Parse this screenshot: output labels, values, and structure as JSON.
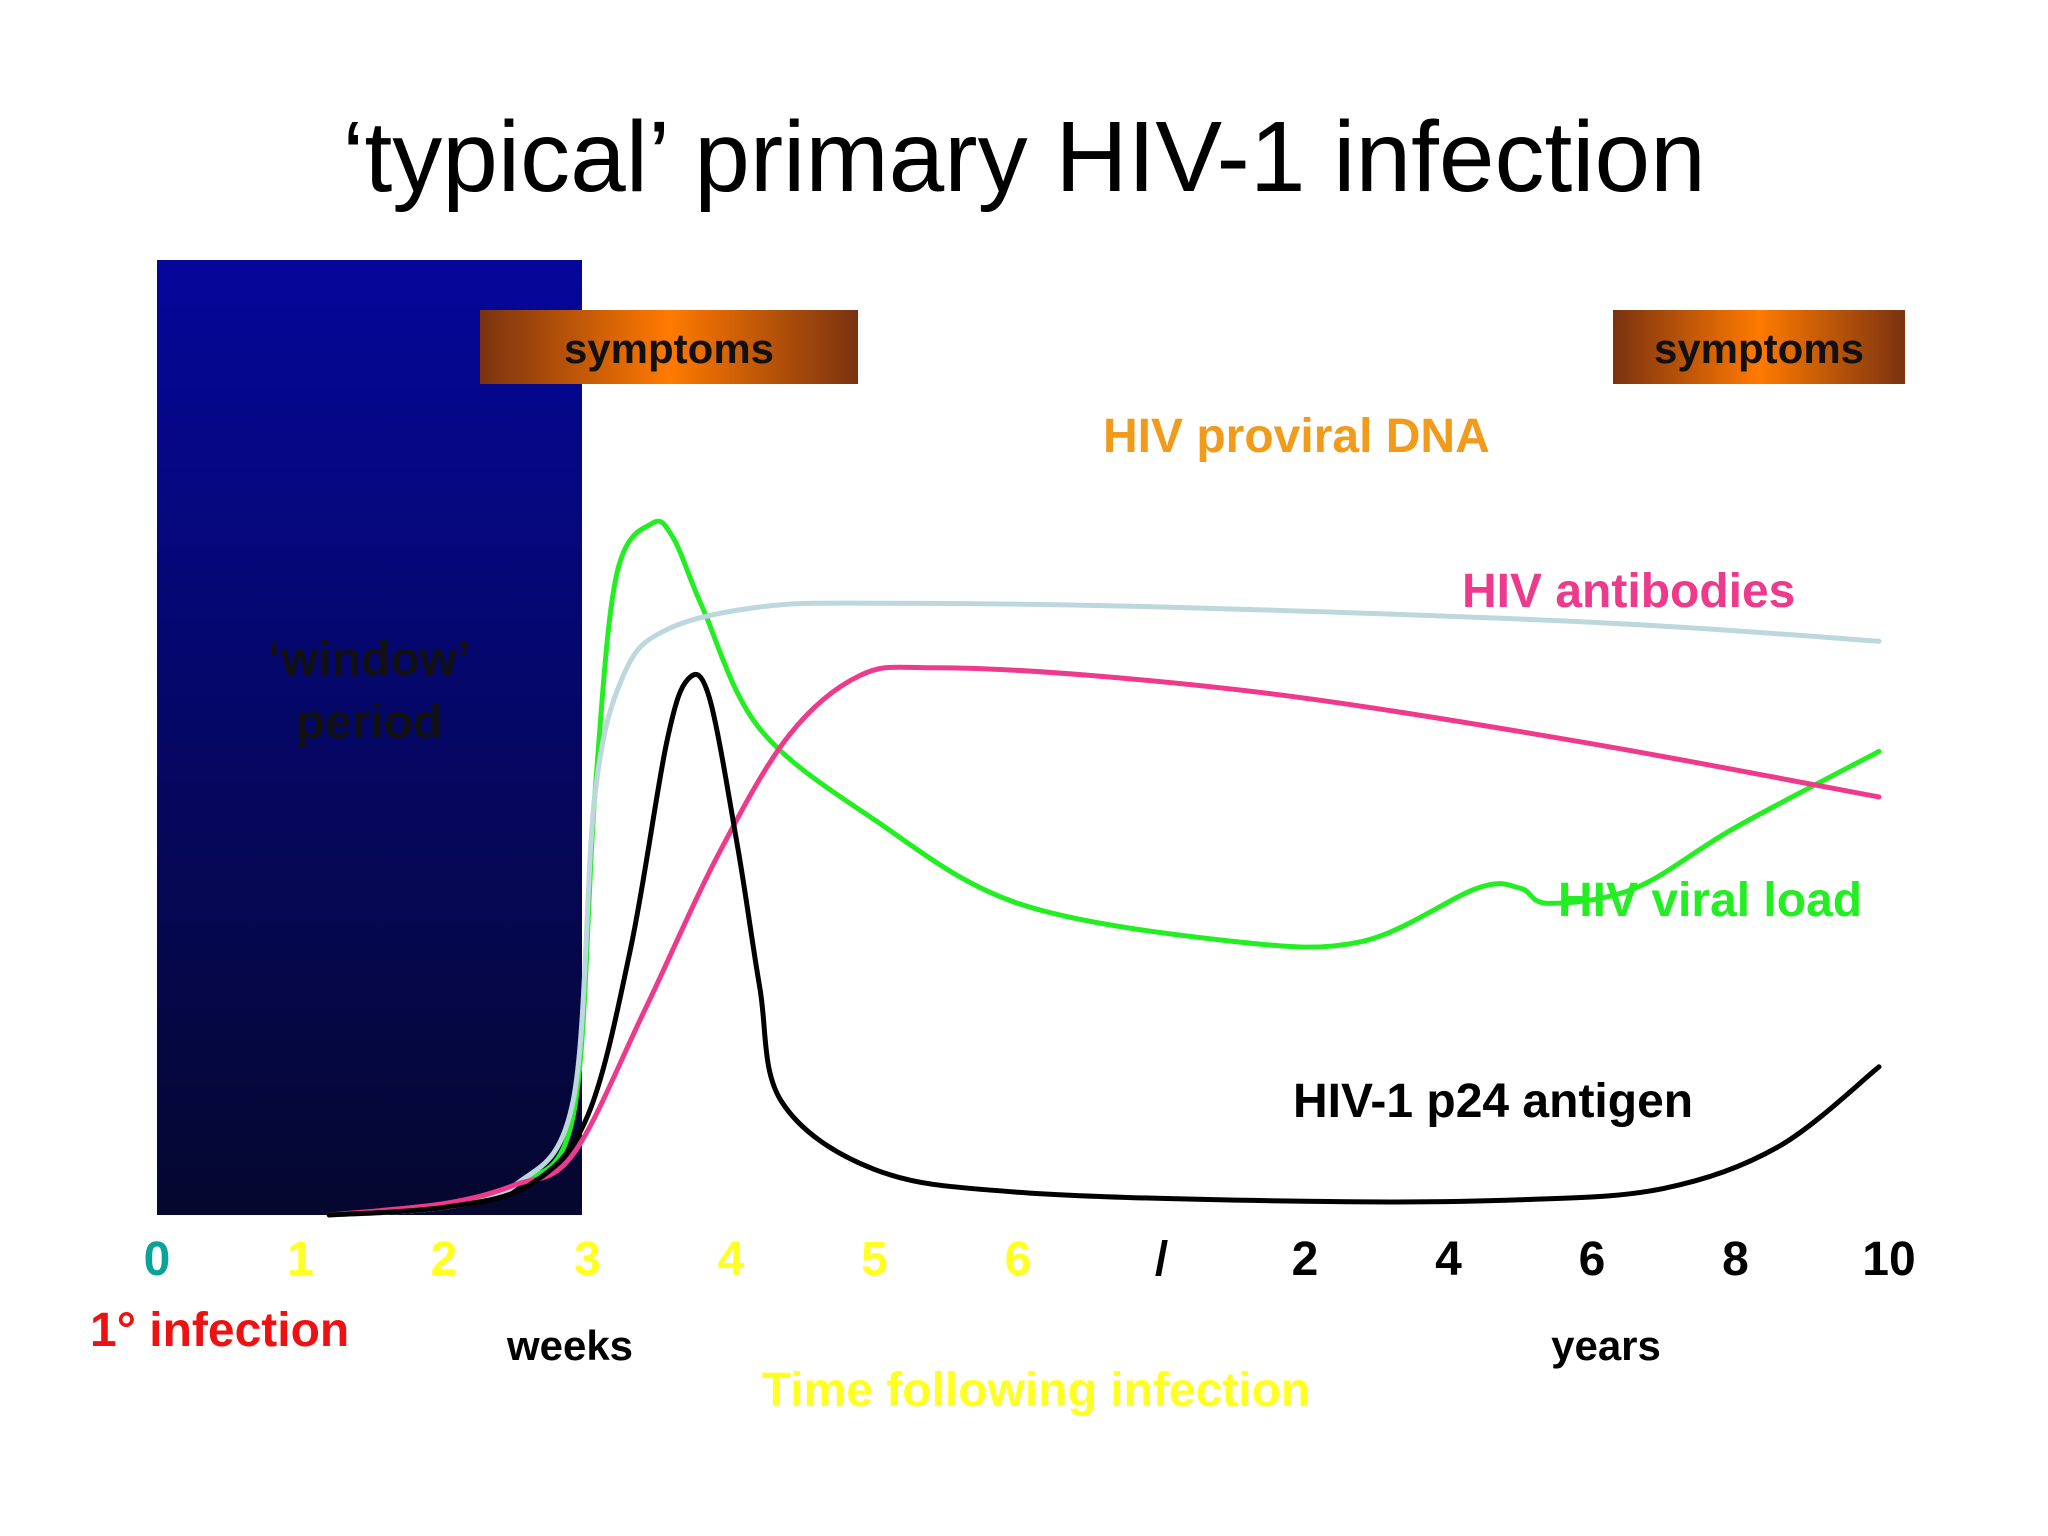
{
  "title": "‘typical’ primary HIV-1 infection",
  "colors": {
    "window_top": "#05079a",
    "window_bottom": "#05072e",
    "symptom_mid": "#ff7a00",
    "symptom_edge": "#7a3210",
    "viral_load": "#22ee22",
    "proviral_dna": "#bcd8dc",
    "antibodies": "#ee3a8c",
    "p24": "#000000",
    "orange_label": "#f29a1a",
    "yellow_label": "#ffff22",
    "teal_label": "#0aa39a",
    "red_label": "#ee1111"
  },
  "chart_data": {
    "type": "line",
    "window_label": [
      "‘window’",
      "period"
    ],
    "symptoms_labels": [
      "symptoms",
      "symptoms"
    ],
    "x_ticks": [
      {
        "label": "0",
        "color": "teal"
      },
      {
        "label": "1",
        "color": "yellow"
      },
      {
        "label": "2",
        "color": "yellow"
      },
      {
        "label": "3",
        "color": "yellow"
      },
      {
        "label": "4",
        "color": "yellow"
      },
      {
        "label": "5",
        "color": "yellow"
      },
      {
        "label": "6",
        "color": "yellow"
      },
      {
        "label": "/",
        "color": "black"
      },
      {
        "label": "2",
        "color": "black"
      },
      {
        "label": "4",
        "color": "black"
      },
      {
        "label": "6",
        "color": "black"
      },
      {
        "label": "8",
        "color": "black"
      },
      {
        "label": "10",
        "color": "black"
      }
    ],
    "x_index_range": [
      0,
      12
    ],
    "y_range": [
      0,
      100
    ],
    "unit_labels": {
      "weeks": "weeks",
      "years": "years"
    },
    "infection_label": "1° infection",
    "xlabel": "Time following infection",
    "series": [
      {
        "name": "HIV viral load",
        "key": "viral_load",
        "points": [
          [
            1.2,
            0
          ],
          [
            2,
            1
          ],
          [
            2.5,
            4
          ],
          [
            2.9,
            13
          ],
          [
            3.05,
            55
          ],
          [
            3.2,
            84
          ],
          [
            3.45,
            91
          ],
          [
            3.6,
            89
          ],
          [
            3.8,
            80
          ],
          [
            4.2,
            64
          ],
          [
            5,
            52
          ],
          [
            6,
            41
          ],
          [
            7.5,
            36
          ],
          [
            8.4,
            36
          ],
          [
            9.2,
            43
          ],
          [
            9.5,
            43
          ],
          [
            9.7,
            41
          ],
          [
            10.3,
            43
          ],
          [
            11,
            51
          ],
          [
            12,
            61
          ]
        ]
      },
      {
        "name": "HIV proviral DNA",
        "key": "proviral_dna",
        "points": [
          [
            1.2,
            0
          ],
          [
            2,
            1
          ],
          [
            2.5,
            4
          ],
          [
            2.9,
            15
          ],
          [
            3.05,
            55
          ],
          [
            3.25,
            71
          ],
          [
            3.55,
            77
          ],
          [
            4.2,
            80
          ],
          [
            5,
            80.5
          ],
          [
            7,
            80
          ],
          [
            10,
            78
          ],
          [
            12,
            75.5
          ]
        ]
      },
      {
        "name": "HIV antibodies",
        "key": "antibodies",
        "points": [
          [
            1.2,
            0
          ],
          [
            2,
            1.5
          ],
          [
            2.5,
            4
          ],
          [
            2.9,
            8
          ],
          [
            3.4,
            27
          ],
          [
            3.9,
            47
          ],
          [
            4.4,
            63
          ],
          [
            4.9,
            71
          ],
          [
            5.4,
            72
          ],
          [
            6.5,
            71
          ],
          [
            8,
            68
          ],
          [
            10,
            62
          ],
          [
            12,
            55
          ]
        ]
      },
      {
        "name": "HIV-1 p24 antigen",
        "key": "p24",
        "points": [
          [
            1.2,
            0
          ],
          [
            2,
            1
          ],
          [
            2.6,
            4
          ],
          [
            3,
            13
          ],
          [
            3.3,
            35
          ],
          [
            3.55,
            62
          ],
          [
            3.7,
            70.5
          ],
          [
            3.85,
            68
          ],
          [
            4.05,
            48
          ],
          [
            4.2,
            30
          ],
          [
            4.35,
            15
          ],
          [
            5,
            6
          ],
          [
            6,
            3
          ],
          [
            8,
            1.8
          ],
          [
            9.5,
            2
          ],
          [
            10.5,
            3.5
          ],
          [
            11.3,
            9
          ],
          [
            12,
            19.5
          ]
        ]
      }
    ],
    "series_labels": [
      "HIV proviral DNA",
      "HIV antibodies",
      "HIV viral load",
      "HIV-1 p24 antigen"
    ]
  }
}
